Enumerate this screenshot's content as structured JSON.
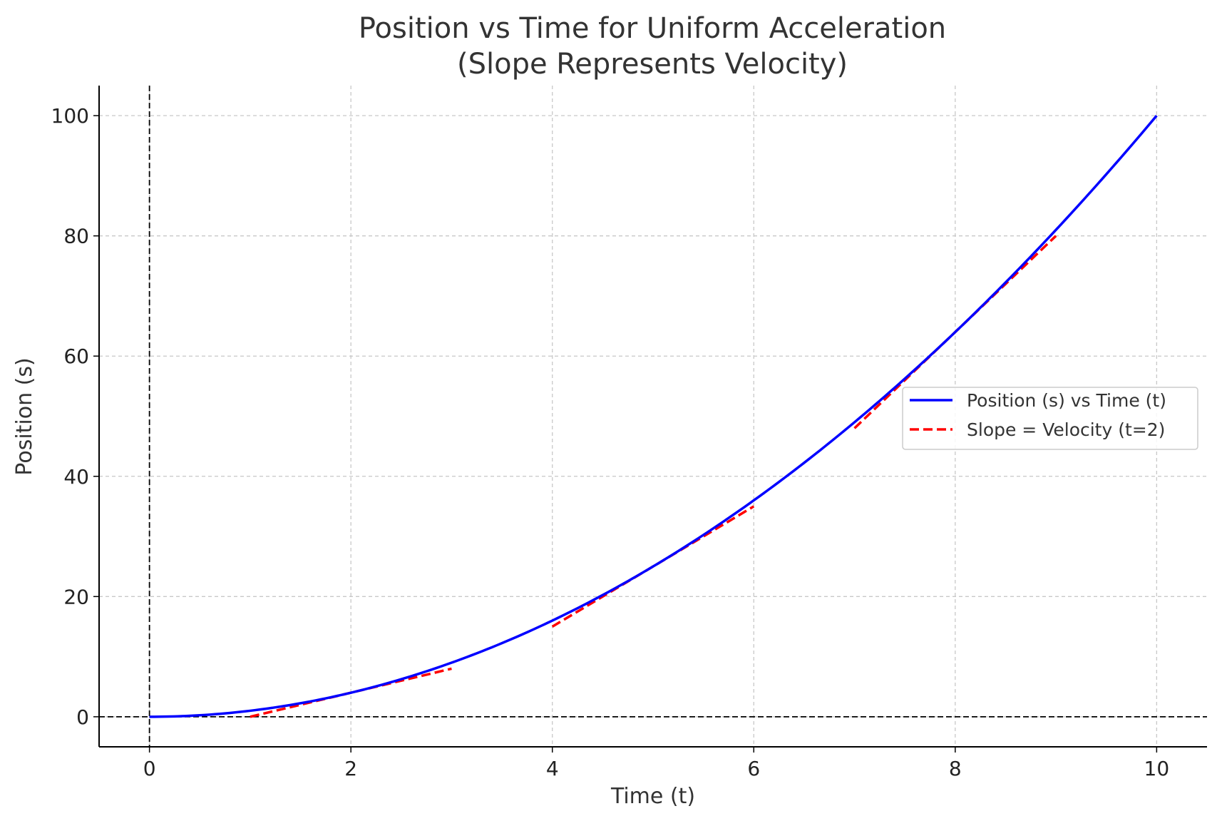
{
  "chart_data": {
    "type": "line",
    "title": "Position vs Time for Uniform Acceleration",
    "subtitle": "(Slope Represents Velocity)",
    "xlabel": "Time (t)",
    "ylabel": "Position (s)",
    "xlim": [
      -0.5,
      10.5
    ],
    "ylim": [
      -5,
      105
    ],
    "xticks": [
      0,
      2,
      4,
      6,
      8,
      10
    ],
    "yticks": [
      0,
      20,
      40,
      60,
      80,
      100
    ],
    "grid": true,
    "legend_position": "center-right",
    "series": [
      {
        "name": "Position (s) vs Time (t)",
        "style": "solid",
        "color": "#0000ff",
        "function": "t^2",
        "x": [
          0,
          0.5,
          1,
          1.5,
          2,
          2.5,
          3,
          3.5,
          4,
          4.5,
          5,
          5.5,
          6,
          6.5,
          7,
          7.5,
          8,
          8.5,
          9,
          9.5,
          10
        ],
        "y": [
          0,
          0.25,
          1,
          2.25,
          4,
          6.25,
          9,
          12.25,
          16,
          20.25,
          25,
          30.25,
          36,
          42.25,
          49,
          56.25,
          64,
          72.25,
          81,
          90.25,
          100
        ]
      },
      {
        "name": "Slope = Velocity (t=2)",
        "style": "dashed",
        "color": "#ff0000",
        "segments": [
          {
            "x": [
              1,
              3
            ],
            "y": [
              0,
              8
            ]
          },
          {
            "x": [
              4,
              6
            ],
            "y": [
              15,
              35
            ]
          },
          {
            "x": [
              7,
              9
            ],
            "y": [
              48,
              80
            ]
          }
        ]
      }
    ],
    "reference_lines": [
      {
        "orientation": "horizontal",
        "value": 0,
        "style": "dashed",
        "color": "#000000"
      },
      {
        "orientation": "vertical",
        "value": 0,
        "style": "dashed",
        "color": "#000000"
      }
    ]
  }
}
